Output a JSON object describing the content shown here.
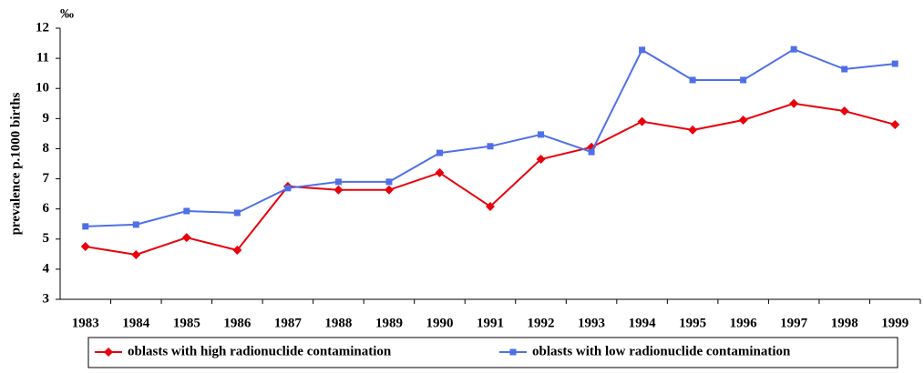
{
  "chart_data": {
    "type": "line",
    "y_label": "prevalence p.1000 births",
    "unit": "‰",
    "categories": [
      "1983",
      "1984",
      "1985",
      "1986",
      "1987",
      "1988",
      "1989",
      "1990",
      "1991",
      "1992",
      "1993",
      "1994",
      "1995",
      "1996",
      "1997",
      "1998",
      "1999"
    ],
    "series": [
      {
        "name": "oblasts with high radionuclide contamination",
        "color": "#e8000b",
        "marker": "diamond",
        "values": [
          4.75,
          4.48,
          5.05,
          4.63,
          6.75,
          6.63,
          6.63,
          7.2,
          6.08,
          7.65,
          8.05,
          8.9,
          8.62,
          8.95,
          9.5,
          9.25,
          8.8
        ]
      },
      {
        "name": "oblasts with low radionuclide contamination",
        "color": "#4f6fe8",
        "marker": "square",
        "values": [
          5.42,
          5.48,
          5.93,
          5.87,
          6.69,
          6.9,
          6.9,
          7.86,
          8.08,
          8.47,
          7.89,
          11.28,
          10.28,
          10.28,
          11.3,
          10.64,
          10.82
        ]
      }
    ],
    "ylim": [
      3,
      12
    ],
    "yticks": [
      3,
      4,
      5,
      6,
      7,
      8,
      9,
      10,
      11,
      12
    ],
    "grid": false,
    "legend": "bottom"
  }
}
